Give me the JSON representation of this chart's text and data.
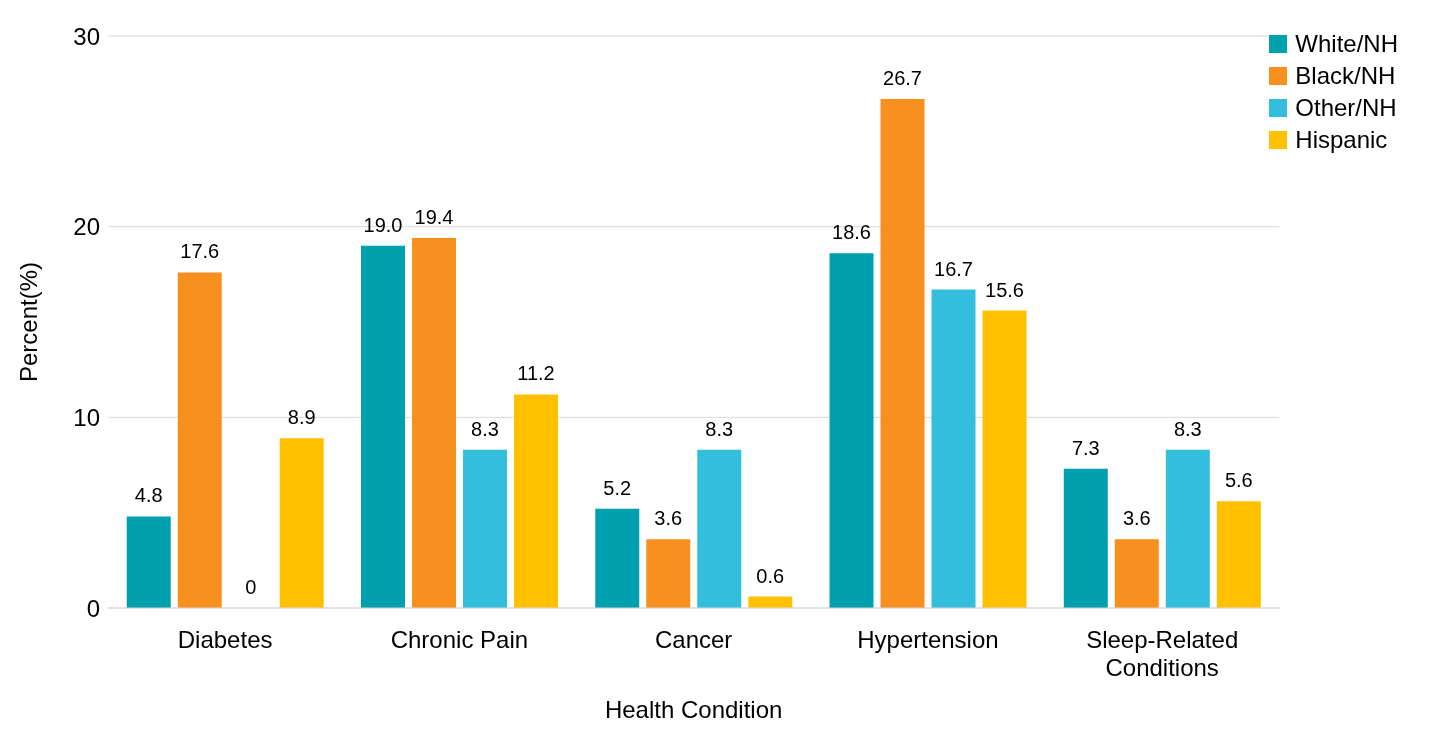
{
  "chart_data": {
    "type": "bar",
    "xlabel": "Health Condition",
    "ylabel": "Percent(%)",
    "categories": [
      "Diabetes",
      "Chronic Pain",
      "Cancer",
      "Hypertension",
      "Sleep-Related Conditions"
    ],
    "series": [
      {
        "name": "White/NH",
        "color": "#00a0ae",
        "values": [
          4.8,
          19.0,
          5.2,
          18.6,
          7.3
        ],
        "value_labels": [
          "4.8",
          "19.0",
          "5.2",
          "18.6",
          "7.3"
        ]
      },
      {
        "name": "Black/NH",
        "color": "#f7901e",
        "values": [
          17.6,
          19.4,
          3.6,
          26.7,
          3.6
        ],
        "value_labels": [
          "17.6",
          "19.4",
          "3.6",
          "26.7",
          "3.6"
        ]
      },
      {
        "name": "Other/NH",
        "color": "#33bedd",
        "values": [
          0,
          8.3,
          8.3,
          16.7,
          8.3
        ],
        "value_labels": [
          "0",
          "8.3",
          "8.3",
          "16.7",
          "8.3"
        ]
      },
      {
        "name": "Hispanic",
        "color": "#ffc000",
        "values": [
          8.9,
          11.2,
          0.6,
          15.6,
          5.6
        ],
        "value_labels": [
          "8.9",
          "11.2",
          "0.6",
          "15.6",
          "5.6"
        ]
      }
    ],
    "ylim": [
      0,
      30
    ],
    "yticks": [
      0,
      10,
      20,
      30
    ],
    "grid": "y",
    "legend": "top right"
  }
}
